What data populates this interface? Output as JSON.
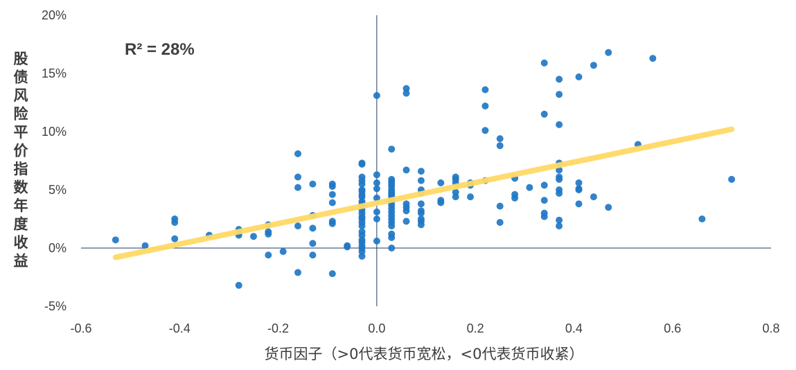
{
  "chart_data": {
    "type": "scatter",
    "title": "",
    "xlabel": "货币因子（>0代表货币宽松，<0代表货币收紧）",
    "ylabel": "股债风险平价指数年度收益",
    "xlim": [
      -0.6,
      0.8
    ],
    "ylim": [
      -5,
      20
    ],
    "x_ticks": [
      -0.6,
      -0.4,
      -0.2,
      0.0,
      0.2,
      0.4,
      0.6,
      0.8
    ],
    "x_tick_labels": [
      "-0.6",
      "-0.4",
      "-0.2",
      "0.0",
      "0.2",
      "0.4",
      "0.6",
      "0.8"
    ],
    "y_ticks": [
      -5,
      0,
      5,
      10,
      15,
      20
    ],
    "y_tick_labels": [
      "-5%",
      "0%",
      "5%",
      "10%",
      "15%",
      "20%"
    ],
    "annotation": "R² = 28%",
    "grid": false,
    "point_color": "#1f77c4",
    "trend_color": "#ffd966",
    "trendline": {
      "x": [
        -0.53,
        0.72
      ],
      "y": [
        -0.8,
        10.2
      ]
    },
    "series": [
      {
        "points": [
          [
            -0.53,
            0.7
          ],
          [
            -0.47,
            0.2
          ],
          [
            -0.41,
            2.5
          ],
          [
            -0.41,
            2.2
          ],
          [
            -0.41,
            0.8
          ],
          [
            -0.34,
            1.1
          ],
          [
            -0.28,
            1.6
          ],
          [
            -0.28,
            1.3
          ],
          [
            -0.28,
            1.1
          ],
          [
            -0.28,
            -3.2
          ],
          [
            -0.25,
            1.0
          ],
          [
            -0.22,
            2.0
          ],
          [
            -0.22,
            1.4
          ],
          [
            -0.22,
            1.2
          ],
          [
            -0.22,
            -0.6
          ],
          [
            -0.19,
            -0.3
          ],
          [
            -0.16,
            8.1
          ],
          [
            -0.16,
            6.1
          ],
          [
            -0.16,
            5.2
          ],
          [
            -0.16,
            1.9
          ],
          [
            -0.16,
            -2.1
          ],
          [
            -0.13,
            5.5
          ],
          [
            -0.13,
            2.8
          ],
          [
            -0.13,
            1.7
          ],
          [
            -0.13,
            0.4
          ],
          [
            -0.13,
            -0.6
          ],
          [
            -0.09,
            5.5
          ],
          [
            -0.09,
            5.3
          ],
          [
            -0.09,
            4.6
          ],
          [
            -0.09,
            3.9
          ],
          [
            -0.09,
            2.3
          ],
          [
            -0.09,
            2.1
          ],
          [
            -0.09,
            -2.2
          ],
          [
            -0.06,
            0.2
          ],
          [
            -0.06,
            0.1
          ],
          [
            -0.03,
            7.3
          ],
          [
            -0.03,
            7.2
          ],
          [
            -0.03,
            6.1
          ],
          [
            -0.03,
            5.8
          ],
          [
            -0.03,
            5.5
          ],
          [
            -0.03,
            5.0
          ],
          [
            -0.03,
            4.9
          ],
          [
            -0.03,
            4.6
          ],
          [
            -0.03,
            4.4
          ],
          [
            -0.03,
            4.0
          ],
          [
            -0.03,
            3.8
          ],
          [
            -0.03,
            3.6
          ],
          [
            -0.03,
            3.3
          ],
          [
            -0.03,
            3.0
          ],
          [
            -0.03,
            2.7
          ],
          [
            -0.03,
            2.5
          ],
          [
            -0.03,
            2.2
          ],
          [
            -0.03,
            1.9
          ],
          [
            -0.03,
            1.4
          ],
          [
            -0.03,
            1.1
          ],
          [
            -0.03,
            0.7
          ],
          [
            -0.03,
            0.5
          ],
          [
            -0.03,
            0.2
          ],
          [
            -0.03,
            0.0
          ],
          [
            -0.03,
            -0.3
          ],
          [
            -0.03,
            -0.7
          ],
          [
            0.0,
            13.1
          ],
          [
            0.0,
            6.3
          ],
          [
            0.0,
            5.6
          ],
          [
            0.0,
            5.1
          ],
          [
            0.0,
            4.3
          ],
          [
            0.0,
            3.1
          ],
          [
            0.0,
            2.5
          ],
          [
            0.0,
            0.6
          ],
          [
            0.03,
            8.5
          ],
          [
            0.03,
            5.9
          ],
          [
            0.03,
            5.7
          ],
          [
            0.03,
            5.5
          ],
          [
            0.03,
            5.3
          ],
          [
            0.03,
            5.0
          ],
          [
            0.03,
            4.8
          ],
          [
            0.03,
            4.6
          ],
          [
            0.03,
            4.4
          ],
          [
            0.03,
            4.2
          ],
          [
            0.03,
            4.0
          ],
          [
            0.03,
            3.7
          ],
          [
            0.03,
            3.4
          ],
          [
            0.03,
            3.1
          ],
          [
            0.03,
            2.8
          ],
          [
            0.03,
            2.5
          ],
          [
            0.03,
            2.2
          ],
          [
            0.03,
            1.9
          ],
          [
            0.03,
            1.2
          ],
          [
            0.03,
            0.9
          ],
          [
            0.03,
            0.0
          ],
          [
            0.06,
            13.7
          ],
          [
            0.06,
            13.3
          ],
          [
            0.06,
            6.7
          ],
          [
            0.06,
            3.8
          ],
          [
            0.06,
            3.5
          ],
          [
            0.06,
            3.2
          ],
          [
            0.06,
            2.3
          ],
          [
            0.09,
            6.6
          ],
          [
            0.09,
            5.8
          ],
          [
            0.09,
            5.0
          ],
          [
            0.09,
            4.7
          ],
          [
            0.09,
            3.8
          ],
          [
            0.09,
            3.2
          ],
          [
            0.09,
            3.0
          ],
          [
            0.09,
            2.5
          ],
          [
            0.09,
            2.3
          ],
          [
            0.09,
            2.0
          ],
          [
            0.13,
            5.6
          ],
          [
            0.13,
            4.1
          ],
          [
            0.13,
            3.9
          ],
          [
            0.16,
            6.1
          ],
          [
            0.16,
            5.9
          ],
          [
            0.16,
            5.6
          ],
          [
            0.16,
            4.8
          ],
          [
            0.16,
            4.4
          ],
          [
            0.19,
            5.6
          ],
          [
            0.19,
            5.4
          ],
          [
            0.19,
            4.4
          ],
          [
            0.22,
            13.6
          ],
          [
            0.22,
            12.2
          ],
          [
            0.22,
            10.1
          ],
          [
            0.22,
            5.8
          ],
          [
            0.25,
            9.4
          ],
          [
            0.25,
            8.8
          ],
          [
            0.25,
            3.6
          ],
          [
            0.25,
            2.2
          ],
          [
            0.28,
            6.0
          ],
          [
            0.28,
            4.6
          ],
          [
            0.28,
            4.3
          ],
          [
            0.31,
            5.2
          ],
          [
            0.34,
            15.9
          ],
          [
            0.34,
            11.5
          ],
          [
            0.34,
            5.4
          ],
          [
            0.34,
            4.1
          ],
          [
            0.34,
            3.0
          ],
          [
            0.34,
            2.7
          ],
          [
            0.37,
            14.5
          ],
          [
            0.37,
            13.2
          ],
          [
            0.37,
            10.6
          ],
          [
            0.37,
            7.3
          ],
          [
            0.37,
            6.7
          ],
          [
            0.37,
            6.1
          ],
          [
            0.37,
            5.9
          ],
          [
            0.37,
            5.0
          ],
          [
            0.37,
            4.7
          ],
          [
            0.37,
            2.4
          ],
          [
            0.37,
            1.9
          ],
          [
            0.41,
            14.7
          ],
          [
            0.41,
            5.6
          ],
          [
            0.41,
            5.1
          ],
          [
            0.41,
            5.0
          ],
          [
            0.41,
            3.8
          ],
          [
            0.44,
            15.7
          ],
          [
            0.44,
            4.4
          ],
          [
            0.47,
            16.8
          ],
          [
            0.47,
            3.5
          ],
          [
            0.53,
            8.9
          ],
          [
            0.56,
            16.3
          ],
          [
            0.66,
            2.5
          ],
          [
            0.72,
            5.9
          ]
        ]
      }
    ]
  }
}
